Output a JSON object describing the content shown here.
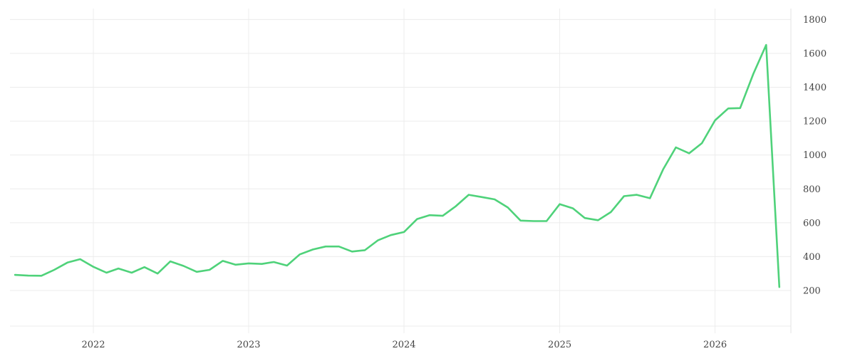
{
  "chart_data": {
    "type": "line",
    "title": "",
    "xlabel": "",
    "ylabel": "",
    "grid": true,
    "legend": "none",
    "xlim": [
      "2021-07-01",
      "2026-07-01"
    ],
    "ylim": [
      0,
      1850
    ],
    "x_ticks": [
      "2022",
      "2023",
      "2024",
      "2025",
      "2026"
    ],
    "y_ticks": [
      "200",
      "400",
      "600",
      "800",
      "1000",
      "1200",
      "1400",
      "1600",
      "1800"
    ],
    "line_color": "#4fd27a",
    "series": [
      {
        "x": [
          "2021-07-01",
          "2021-08-01",
          "2021-09-01",
          "2021-10-01",
          "2021-11-01",
          "2021-12-01",
          "2022-01-01",
          "2022-02-01",
          "2022-03-01",
          "2022-04-01",
          "2022-05-01",
          "2022-06-01",
          "2022-07-01",
          "2022-08-01",
          "2022-09-01",
          "2022-10-01",
          "2022-11-01",
          "2022-12-01",
          "2023-01-01",
          "2023-02-01",
          "2023-03-01",
          "2023-04-01",
          "2023-05-01",
          "2023-06-01",
          "2023-07-01",
          "2023-08-01",
          "2023-09-01",
          "2023-10-01",
          "2023-11-01",
          "2023-12-01",
          "2024-01-01",
          "2024-02-01",
          "2024-03-01",
          "2024-04-01",
          "2024-05-01",
          "2024-06-01",
          "2024-07-01",
          "2024-08-01",
          "2024-09-01",
          "2024-10-01",
          "2024-11-01",
          "2024-12-01",
          "2025-01-01",
          "2025-02-01",
          "2025-03-01",
          "2025-04-01",
          "2025-05-01",
          "2025-06-01",
          "2025-07-01",
          "2025-08-01",
          "2025-09-01",
          "2025-10-01",
          "2025-11-01",
          "2025-12-01",
          "2026-01-01",
          "2026-02-01",
          "2026-03-01",
          "2026-04-01",
          "2026-05-01",
          "2026-06-01"
        ],
        "values": [
          292,
          288,
          287,
          322,
          365,
          385,
          340,
          305,
          330,
          305,
          338,
          300,
          372,
          345,
          310,
          322,
          375,
          352,
          360,
          357,
          368,
          347,
          413,
          442,
          460,
          460,
          430,
          438,
          497,
          527,
          545,
          622,
          645,
          641,
          696,
          765,
          752,
          738,
          690,
          613,
          610,
          610,
          710,
          685,
          628,
          615,
          663,
          757,
          765,
          745,
          915,
          1045,
          1010,
          1070,
          1205,
          1275,
          1277,
          1480,
          1650,
          220
        ]
      }
    ]
  }
}
